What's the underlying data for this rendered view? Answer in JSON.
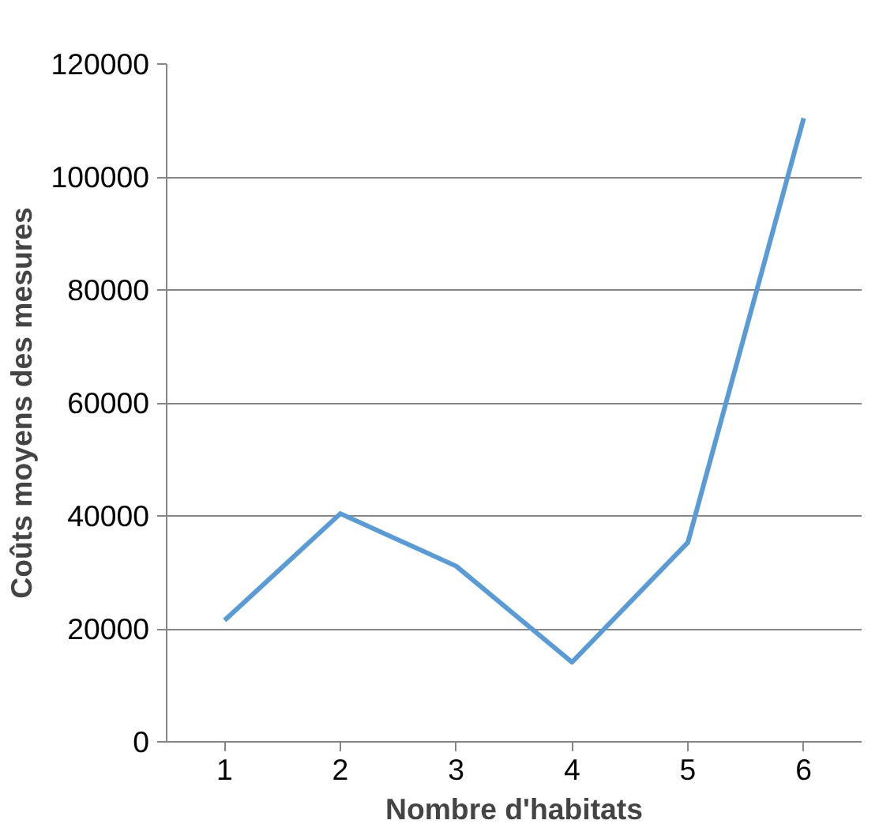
{
  "chart_data": {
    "type": "line",
    "xlabel": "Nombre d'habitats",
    "ylabel": "Coûts moyens des mesures",
    "categories": [
      "1",
      "2",
      "3",
      "4",
      "5",
      "6"
    ],
    "series": [
      {
        "color": "#5b9bd5",
        "values": [
          21500,
          40400,
          31100,
          14100,
          35300,
          110400
        ]
      }
    ],
    "ylim": [
      0,
      120000
    ],
    "yticks": [
      0,
      20000,
      40000,
      60000,
      80000,
      100000,
      120000
    ],
    "grid": "y",
    "marker": "none",
    "line_style": "solid"
  }
}
